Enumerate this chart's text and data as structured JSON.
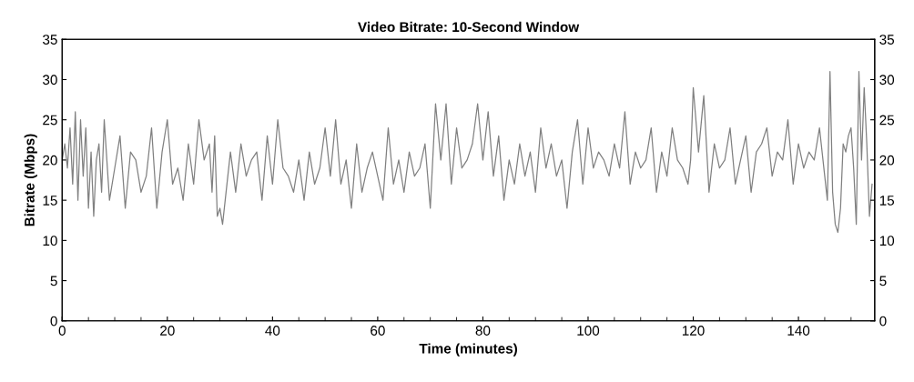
{
  "chart_data": {
    "type": "line",
    "title": "Video Bitrate: 10-Second Window",
    "xlabel": "Time (minutes)",
    "ylabel": "Bitrate (Mbps)",
    "x": [
      0,
      0.5,
      1,
      1.5,
      2,
      2.5,
      3,
      3.5,
      4,
      4.5,
      5,
      5.5,
      6,
      6.5,
      7,
      7.5,
      8,
      9,
      10,
      11,
      12,
      13,
      14,
      15,
      16,
      17,
      18,
      19,
      20,
      21,
      22,
      23,
      24,
      25,
      26,
      27,
      28,
      28.5,
      29,
      29.5,
      30,
      30.5,
      31,
      32,
      33,
      34,
      35,
      36,
      37,
      38,
      39,
      40,
      41,
      42,
      43,
      44,
      45,
      46,
      47,
      48,
      49,
      50,
      51,
      52,
      53,
      54,
      55,
      56,
      57,
      58,
      59,
      60,
      61,
      62,
      63,
      64,
      65,
      66,
      67,
      68,
      69,
      70,
      71,
      72,
      73,
      74,
      75,
      76,
      77,
      78,
      79,
      80,
      81,
      82,
      83,
      84,
      85,
      86,
      87,
      88,
      89,
      90,
      91,
      92,
      93,
      94,
      95,
      96,
      97,
      98,
      99,
      100,
      101,
      102,
      103,
      104,
      105,
      106,
      107,
      108,
      109,
      110,
      111,
      112,
      113,
      114,
      115,
      116,
      117,
      118,
      119,
      119.5,
      120,
      121,
      122,
      123,
      124,
      125,
      126,
      127,
      128,
      129,
      130,
      131,
      132,
      133,
      134,
      135,
      136,
      137,
      138,
      139,
      140,
      141,
      142,
      143,
      144,
      145,
      145.5,
      146,
      146.5,
      147,
      147.5,
      148,
      148.5,
      149,
      149.5,
      150,
      150.5,
      151,
      151.5,
      152,
      152.5,
      153,
      153.5,
      154
    ],
    "series": [
      {
        "color": "#808080",
        "values": [
          20,
          22,
          19,
          24,
          17,
          26,
          15,
          25,
          18,
          24,
          14,
          21,
          13,
          20,
          22,
          16,
          25,
          15,
          19,
          23,
          14,
          21,
          20,
          16,
          18,
          24,
          14,
          21,
          25,
          17,
          19,
          15,
          22,
          17,
          25,
          20,
          22,
          16,
          23,
          13,
          14,
          12,
          15,
          21,
          16,
          22,
          18,
          20,
          21,
          15,
          23,
          17,
          25,
          19,
          18,
          16,
          20,
          15,
          21,
          17,
          19,
          24,
          18,
          25,
          17,
          20,
          14,
          22,
          16,
          19,
          21,
          18,
          15,
          24,
          17,
          20,
          16,
          21,
          18,
          19,
          22,
          14,
          27,
          20,
          27,
          17,
          24,
          19,
          20,
          22,
          27,
          20,
          26,
          18,
          23,
          15,
          20,
          17,
          22,
          18,
          21,
          16,
          24,
          19,
          22,
          18,
          20,
          14,
          21,
          25,
          17,
          24,
          19,
          21,
          20,
          18,
          22,
          19,
          26,
          17,
          21,
          19,
          20,
          24,
          16,
          21,
          18,
          24,
          20,
          19,
          17,
          20,
          29,
          21,
          28,
          16,
          22,
          19,
          20,
          24,
          17,
          20,
          23,
          16,
          21,
          22,
          24,
          18,
          21,
          20,
          25,
          17,
          22,
          19,
          21,
          20,
          24,
          18,
          15,
          31,
          16,
          12,
          11,
          14,
          22,
          21,
          23,
          24,
          19,
          12,
          31,
          20,
          29,
          22,
          13,
          17
        ]
      }
    ],
    "xlim": [
      0,
      154.5
    ],
    "ylim": [
      0,
      35
    ],
    "xticks": [
      0,
      {
        "value": 5,
        "label": null
      },
      {
        "value": 10,
        "label": null
      },
      {
        "value": 15,
        "label": null
      },
      20,
      {
        "value": 25,
        "label": null
      },
      {
        "value": 30,
        "label": null
      },
      {
        "value": 35,
        "label": null
      },
      40,
      {
        "value": 45,
        "label": null
      },
      {
        "value": 50,
        "label": null
      },
      {
        "value": 55,
        "label": null
      },
      60,
      {
        "value": 65,
        "label": null
      },
      {
        "value": 70,
        "label": null
      },
      {
        "value": 75,
        "label": null
      },
      80,
      {
        "value": 85,
        "label": null
      },
      {
        "value": 90,
        "label": null
      },
      {
        "value": 95,
        "label": null
      },
      100,
      {
        "value": 105,
        "label": null
      },
      {
        "value": 110,
        "label": null
      },
      {
        "value": 115,
        "label": null
      },
      120,
      {
        "value": 125,
        "label": null
      },
      {
        "value": 130,
        "label": null
      },
      {
        "value": 135,
        "label": null
      },
      140,
      {
        "value": 145,
        "label": null
      },
      {
        "value": 150,
        "label": null
      }
    ],
    "yticks": [
      0,
      5,
      10,
      15,
      20,
      25,
      30,
      35
    ],
    "y2lim": [
      0,
      35
    ],
    "y2ticks": [
      0,
      5,
      10,
      15,
      20,
      25,
      30,
      35
    ],
    "grid": false,
    "legend": false
  }
}
